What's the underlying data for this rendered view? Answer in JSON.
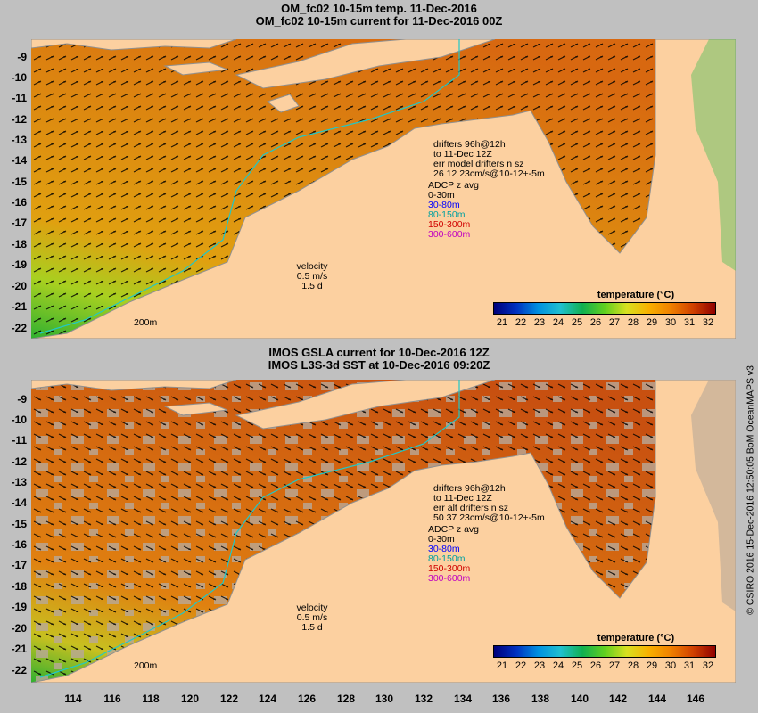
{
  "top": {
    "title1": "OM_fc02 10-15m temp. 11-Dec-2016",
    "title2": "OM_fc02 10-15m current for 11-Dec-2016 00Z",
    "drifter": [
      "drifters 96h@12h",
      "to 11-Dec 12Z",
      "err model drifters n sz",
      "26 12 23cm/s@10-12+-5m"
    ],
    "adcp_title": "ADCP z avg",
    "adcp": [
      {
        "label": "0-30m",
        "color": "#000000"
      },
      {
        "label": "30-80m",
        "color": "#0000ff"
      },
      {
        "label": "80-150m",
        "color": "#00c8c8"
      },
      {
        "label": "150-300m",
        "color": "#ff0000"
      },
      {
        "label": "300-600m",
        "color": "#ff00ff"
      }
    ],
    "velocity": [
      "velocity",
      "0.5 m/s",
      "1.5 d"
    ],
    "scale": "200m"
  },
  "bottom": {
    "title1": "IMOS GSLA current for 10-Dec-2016 12Z",
    "title2": "IMOS L3S-3d SST at 10-Dec-2016 09:20Z",
    "drifter": [
      "drifters 96h@12h",
      "to 11-Dec 12Z",
      "err alt drifters n sz",
      "50 37 23cm/s@10-12+-5m"
    ],
    "adcp_title": "ADCP z avg",
    "adcp": [
      {
        "label": "0-30m",
        "color": "#000000"
      },
      {
        "label": "30-80m",
        "color": "#0000ff"
      },
      {
        "label": "80-150m",
        "color": "#00c8c8"
      },
      {
        "label": "150-300m",
        "color": "#ff0000"
      },
      {
        "label": "300-600m",
        "color": "#ff00ff"
      }
    ],
    "velocity": [
      "velocity",
      "0.5 m/s",
      "1.5 d"
    ],
    "scale": "200m"
  },
  "colorbar": {
    "title": "temperature (°C)",
    "ticks": [
      "21",
      "22",
      "23",
      "24",
      "25",
      "26",
      "27",
      "28",
      "29",
      "30",
      "31",
      "32"
    ]
  },
  "lat_ticks": [
    "-9",
    "-10",
    "-11",
    "-12",
    "-13",
    "-14",
    "-15",
    "-16",
    "-17",
    "-18",
    "-19",
    "-20",
    "-21",
    "-22"
  ],
  "lon_ticks": [
    "114",
    "116",
    "118",
    "120",
    "122",
    "124",
    "126",
    "128",
    "130",
    "132",
    "134",
    "136",
    "138",
    "140",
    "142",
    "144",
    "146"
  ],
  "credit": "© CSIRO 2016  15-Dec-2016 12:50:05 BoM OceanMAPS v3",
  "colors": {
    "land": "#fcd0a0",
    "ocean_warm": "#e08010",
    "ocean_cool": "#30b030",
    "nodata": "#b8a898",
    "isobath": "#20c8c8"
  }
}
